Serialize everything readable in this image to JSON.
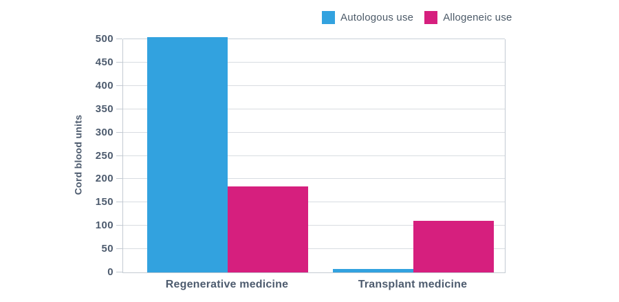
{
  "chart_data": {
    "type": "bar",
    "title": "",
    "categories": [
      "Regenerative medicine",
      "Transplant medicine"
    ],
    "series": [
      {
        "name": "Autologous use",
        "color": "#32a2df",
        "values": [
          505,
          8
        ]
      },
      {
        "name": "Allogeneic use",
        "color": "#d61f7e",
        "values": [
          184,
          110
        ]
      }
    ],
    "xlabel": "",
    "ylabel": "Cord blood units",
    "ylim": [
      0,
      500
    ],
    "ytick_step": 50,
    "y_ticks": [
      0,
      50,
      100,
      150,
      200,
      250,
      300,
      350,
      400,
      450,
      500
    ],
    "grid": true,
    "legend_position": "top-right"
  },
  "colors": {
    "autologous_blue": "#32a2df",
    "allogeneic_magenta": "#d61f7e",
    "axis_text": "#4d5b6e",
    "legend_text": "#4c5a68",
    "gridline": "#d8dce1",
    "axis_line": "#c3cad2",
    "background": "#ffffff"
  }
}
